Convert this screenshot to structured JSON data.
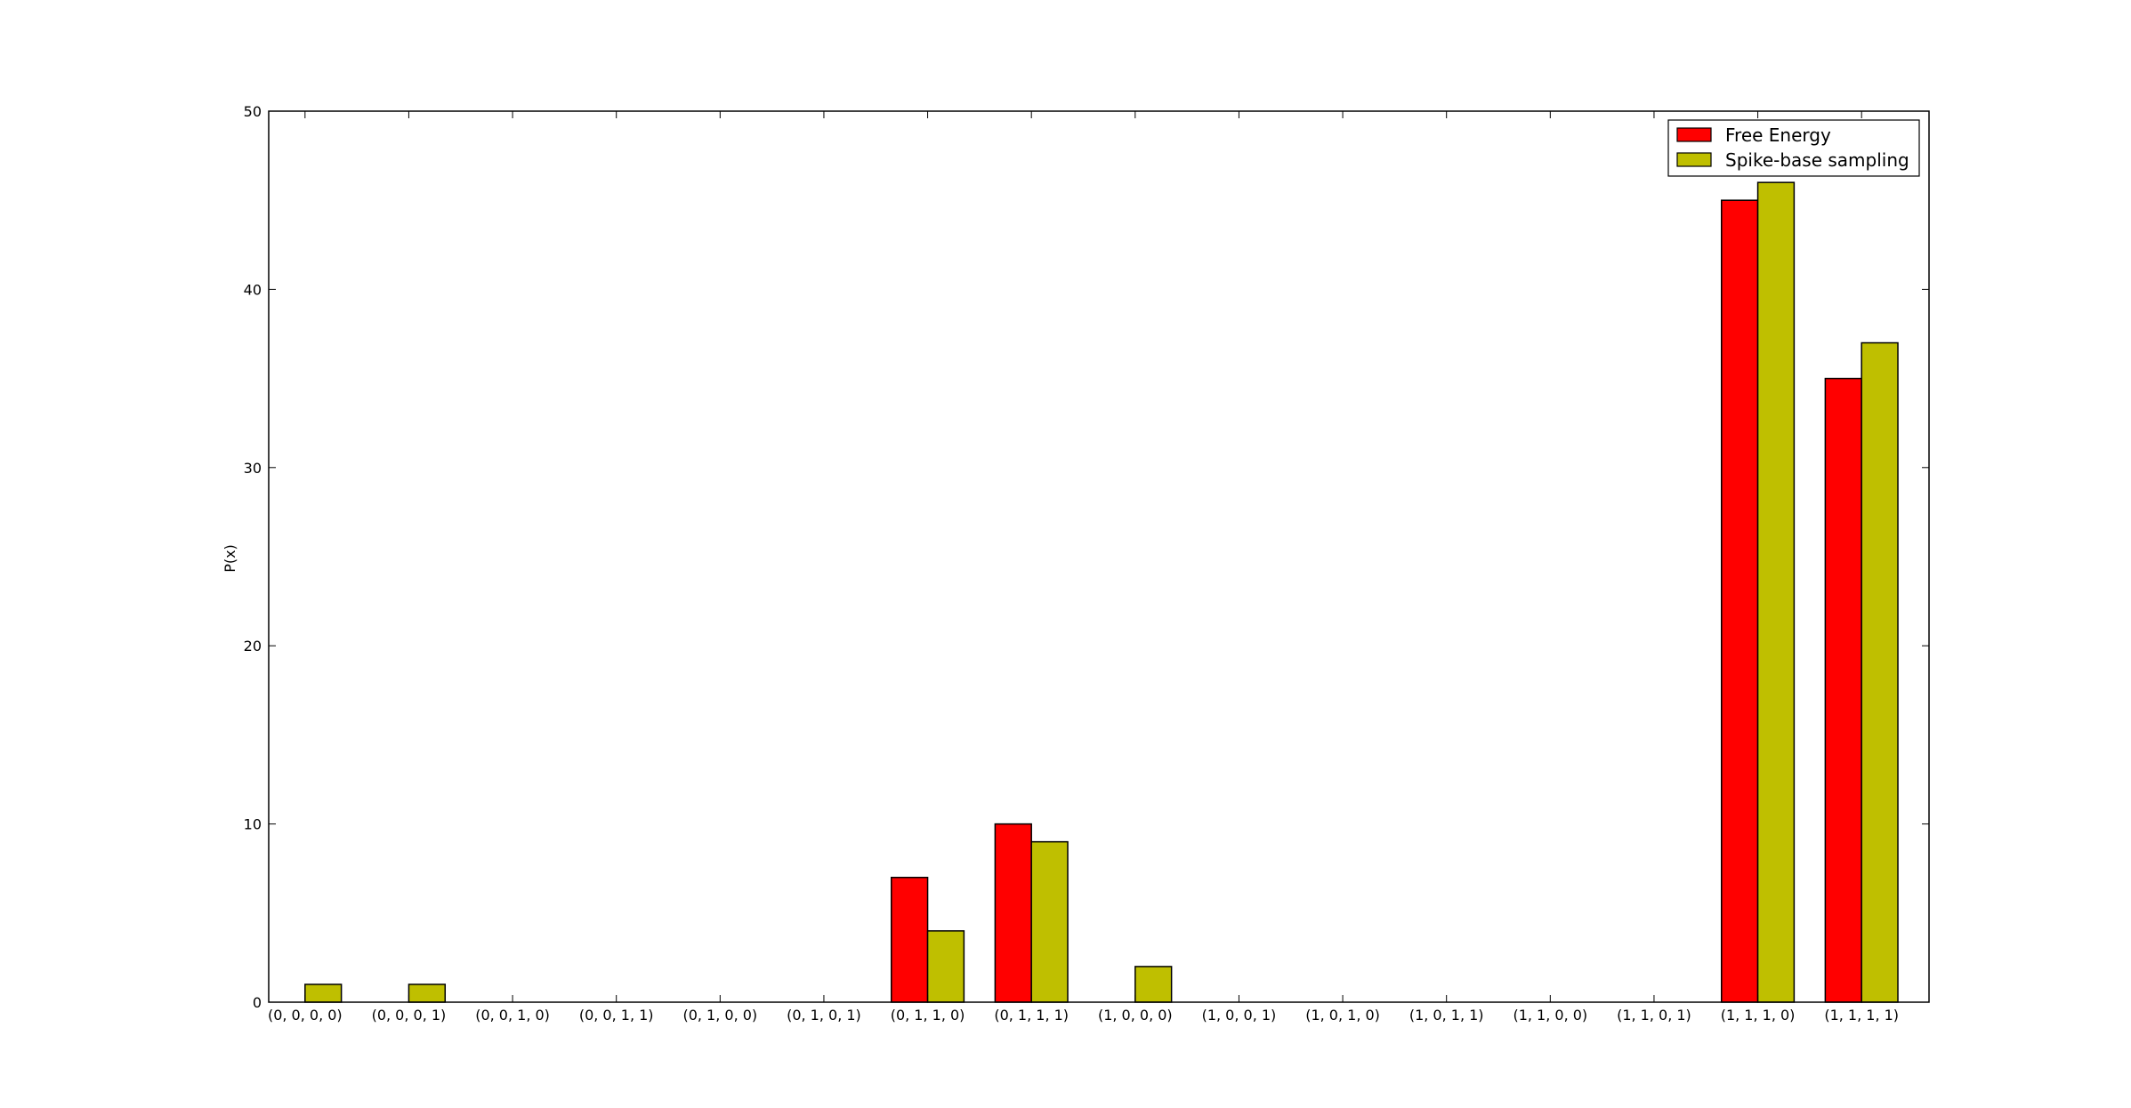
{
  "chart_data": {
    "type": "bar",
    "title": "",
    "xlabel": "",
    "ylabel": "P(x)",
    "ylim": [
      0,
      50
    ],
    "yticks": [
      0,
      10,
      20,
      30,
      40,
      50
    ],
    "grid": false,
    "legend_position": "top-right",
    "categories": [
      "(0, 0, 0, 0)",
      "(0, 0, 0, 1)",
      "(0, 0, 1, 0)",
      "(0, 0, 1, 1)",
      "(0, 1, 0, 0)",
      "(0, 1, 0, 1)",
      "(0, 1, 1, 0)",
      "(0, 1, 1, 1)",
      "(1, 0, 0, 0)",
      "(1, 0, 0, 1)",
      "(1, 0, 1, 0)",
      "(1, 0, 1, 1)",
      "(1, 1, 0, 0)",
      "(1, 1, 0, 1)",
      "(1, 1, 1, 0)",
      "(1, 1, 1, 1)"
    ],
    "series": [
      {
        "name": "Free Energy",
        "color": "#ff0000",
        "values": [
          0,
          0,
          0,
          0,
          0,
          0,
          7,
          10,
          0,
          0,
          0,
          0,
          0,
          0,
          45,
          35
        ]
      },
      {
        "name": "Spike-base sampling",
        "color": "#bfbf00",
        "values": [
          1,
          1,
          0,
          0,
          0,
          0,
          4,
          9,
          2,
          0,
          0,
          0,
          0,
          0,
          46,
          37
        ]
      }
    ]
  }
}
